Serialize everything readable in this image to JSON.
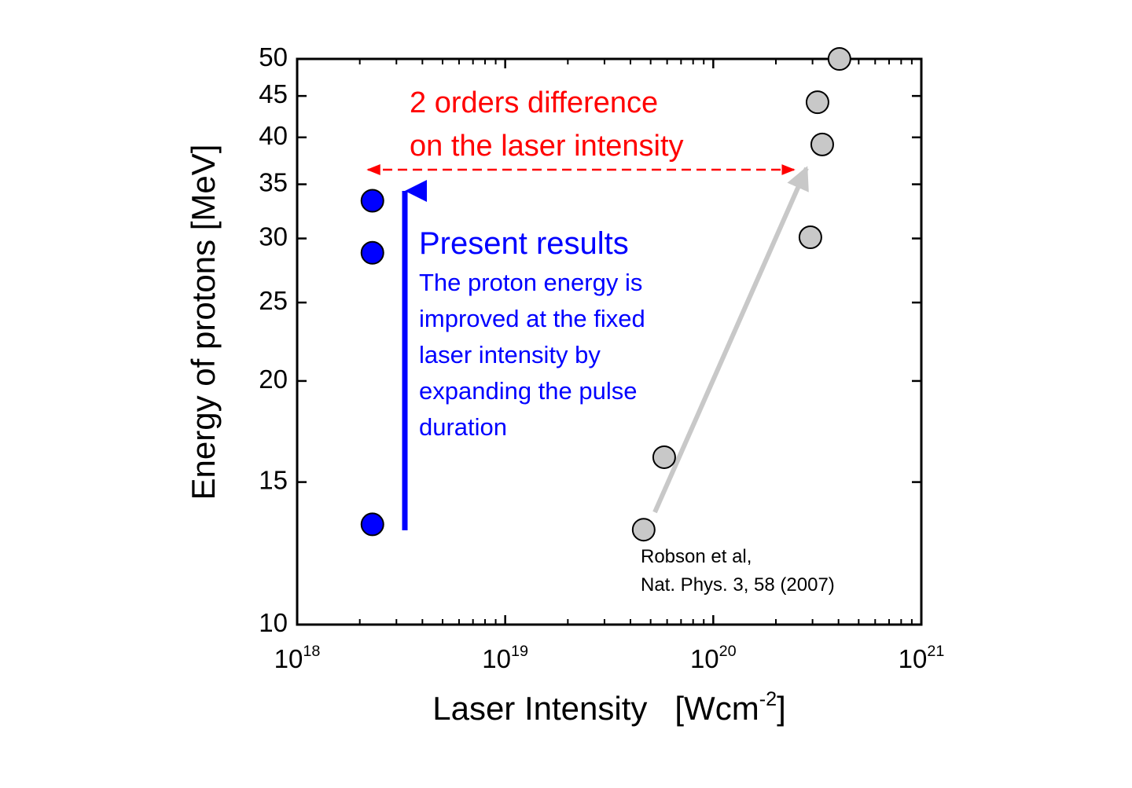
{
  "chart_data": {
    "type": "scatter",
    "x_label": "Laser Intensity   [Wcm^{-2}]",
    "y_label": "Energy of protons [MeV]",
    "log_x": true,
    "log_y": true,
    "xlim": [
      1e+18,
      1e+21
    ],
    "xticks": [
      {
        "value": 1e+18,
        "label": "10^{18}"
      },
      {
        "value": 1e+19,
        "label": "10^{19}"
      },
      {
        "value": 1e+20,
        "label": "10^{20}"
      },
      {
        "value": 1e+21,
        "label": "10^{21}"
      }
    ],
    "ylim": [
      10,
      50
    ],
    "yticks": [
      10,
      15,
      20,
      25,
      30,
      35,
      40,
      45,
      50
    ],
    "series": [
      {
        "color": "#0000ff",
        "x": [
          2.3e+18,
          2.3e+18,
          2.3e+18
        ],
        "values": [
          33.4,
          28.8,
          13.3
        ]
      },
      {
        "color": "#c8c8c8",
        "x": [
          4.04e+20,
          3.17e+20,
          3.34e+20,
          2.93e+20,
          5.81e+19,
          4.63e+19
        ],
        "values": [
          50,
          44.2,
          39.2,
          30.1,
          16.1,
          13.1
        ]
      }
    ],
    "annotations": {
      "difference": [
        "2 orders difference",
        "on the laser intensity"
      ],
      "present_title": "Present results",
      "present_text": [
        "The proton energy is",
        "improved at the fixed",
        "laser intensity by",
        "expanding the pulse",
        "duration"
      ],
      "citation": [
        "Robson et al,",
        "Nat. Phys. 3, 58 (2007)"
      ]
    }
  }
}
